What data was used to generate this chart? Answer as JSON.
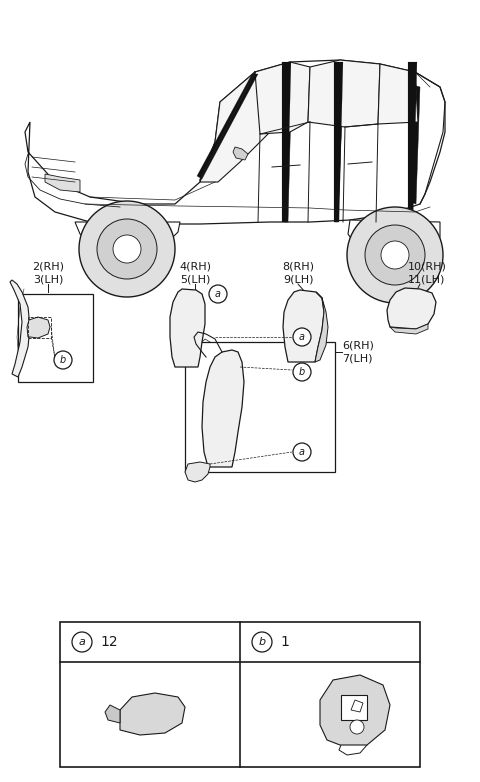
{
  "bg_color": "#ffffff",
  "line_color": "#1a1a1a",
  "fig_width": 4.8,
  "fig_height": 7.82,
  "dpi": 100,
  "labels": {
    "part2_3": "2(RH)\n3(LH)",
    "part4_5": "4(RH)\n5(LH)",
    "part6_7": "6(RH)\n7(LH)",
    "part8_9": "8(RH)\n9(LH)",
    "part10_11": "10(RH)\n11(LH)",
    "cell_a_qty": "12",
    "cell_b_qty": "1"
  },
  "font_size_label": 8,
  "font_size_table_hdr": 10,
  "font_size_circle": 7
}
